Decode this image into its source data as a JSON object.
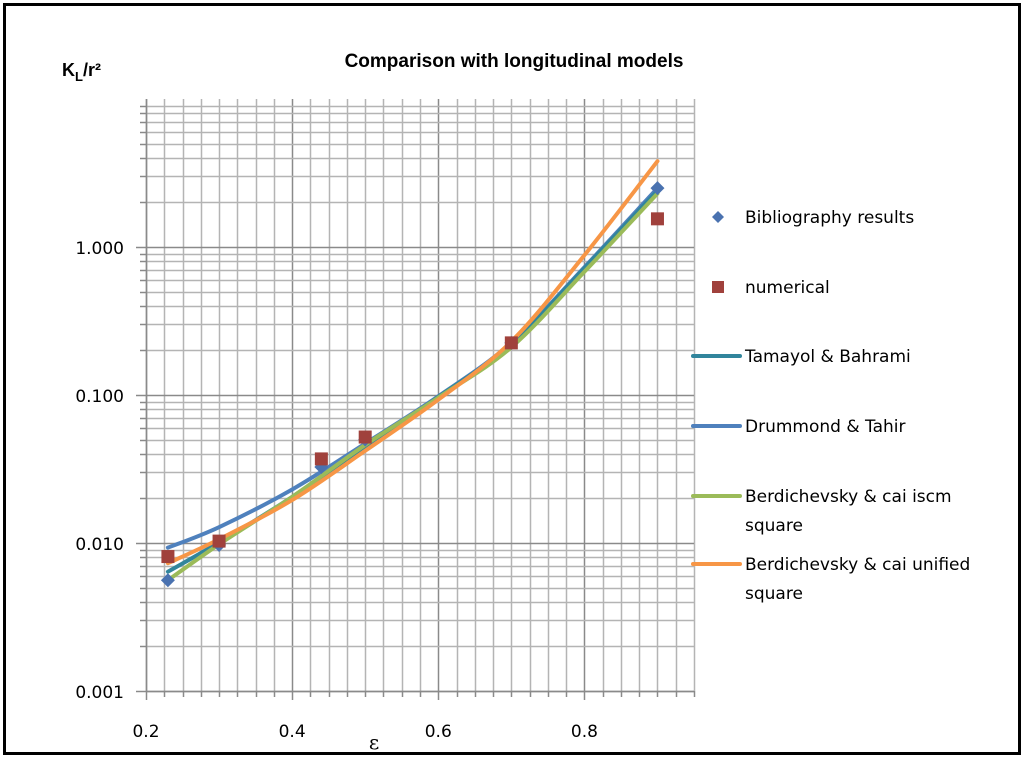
{
  "chart_data": {
    "type": "scatter",
    "title": "Comparison with longitudinal models",
    "xlabel": "ε",
    "ylabel": "K_L/r²",
    "ylabel_main": "K",
    "ylabel_sub": "L",
    "ylabel_rest": "/r²",
    "xlim": [
      0.2,
      0.95
    ],
    "ylim": [
      0.001,
      10
    ],
    "yscale": "log",
    "grid": true,
    "legend_position": "right",
    "x_ticks": [
      {
        "value": 0.2,
        "label": "0.2"
      },
      {
        "value": 0.4,
        "label": "0.4"
      },
      {
        "value": 0.6,
        "label": "0.6"
      },
      {
        "value": 0.8,
        "label": "0.8"
      }
    ],
    "y_ticks": [
      {
        "value": 0.001,
        "label": "0.001"
      },
      {
        "value": 0.01,
        "label": "0.010"
      },
      {
        "value": 0.1,
        "label": "0.100"
      },
      {
        "value": 1,
        "label": "1.000"
      }
    ],
    "series": [
      {
        "name": "Bibliography results",
        "kind": "marker",
        "marker": "diamond",
        "color": "#4a72b0",
        "x": [
          0.23,
          0.3,
          0.44,
          0.5,
          0.7,
          0.9
        ],
        "y": [
          0.0056,
          0.0097,
          0.0326,
          0.05,
          0.225,
          2.5
        ]
      },
      {
        "name": "numerical",
        "kind": "marker",
        "marker": "square",
        "color": "#a0413c",
        "x": [
          0.23,
          0.3,
          0.44,
          0.5,
          0.7,
          0.9
        ],
        "y": [
          0.0081,
          0.0103,
          0.037,
          0.052,
          0.225,
          1.55
        ]
      },
      {
        "name": "Tamayol & Bahrami",
        "kind": "line",
        "color": "#31859c",
        "x": [
          0.23,
          0.3,
          0.4,
          0.5,
          0.6,
          0.7,
          0.8,
          0.9
        ],
        "y": [
          0.0064,
          0.0101,
          0.0205,
          0.045,
          0.097,
          0.22,
          0.72,
          2.4
        ]
      },
      {
        "name": "Drummond & Tahir",
        "kind": "line",
        "color": "#4f81bd",
        "x": [
          0.23,
          0.3,
          0.4,
          0.5,
          0.6,
          0.7,
          0.8,
          0.9
        ],
        "y": [
          0.0093,
          0.0128,
          0.023,
          0.047,
          0.098,
          0.225,
          0.73,
          2.5
        ]
      },
      {
        "name": "Berdichevsky & cai iscm square",
        "kind": "line",
        "color": "#9bbb59",
        "x": [
          0.23,
          0.3,
          0.4,
          0.5,
          0.6,
          0.7,
          0.8,
          0.9
        ],
        "y": [
          0.0056,
          0.0098,
          0.0205,
          0.046,
          0.096,
          0.21,
          0.68,
          2.3
        ]
      },
      {
        "name": "Berdichevsky & cai unified square",
        "kind": "line",
        "color": "#f79646",
        "x": [
          0.23,
          0.3,
          0.4,
          0.5,
          0.6,
          0.7,
          0.8,
          0.9
        ],
        "y": [
          0.0073,
          0.0106,
          0.0195,
          0.042,
          0.093,
          0.23,
          0.88,
          3.8
        ]
      }
    ]
  },
  "legend": {
    "items": [
      {
        "lines": [
          "Bibliography results"
        ]
      },
      {
        "lines": [
          "numerical"
        ]
      },
      {
        "lines": [
          "Tamayol & Bahrami"
        ]
      },
      {
        "lines": [
          "Drummond & Tahir"
        ]
      },
      {
        "lines": [
          "Berdichevsky & cai iscm",
          "square"
        ]
      },
      {
        "lines": [
          "Berdichevsky & cai unified",
          "square"
        ]
      }
    ]
  }
}
